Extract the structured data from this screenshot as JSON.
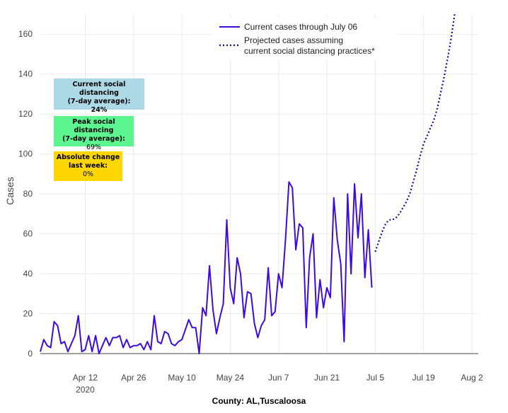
{
  "chart_data": {
    "type": "line",
    "title": "",
    "xlabel": "County: AL,Tuscaloosa",
    "ylabel": "Cases",
    "ylim": [
      0,
      170
    ],
    "yticks": [
      0,
      20,
      40,
      60,
      80,
      100,
      120,
      140,
      160
    ],
    "x_start": "2020-03-30",
    "x_end": "2020-08-03",
    "xticks": [
      {
        "day": 13,
        "label": "Apr 12",
        "sub": "2020"
      },
      {
        "day": 27,
        "label": "Apr 26",
        "sub": ""
      },
      {
        "day": 41,
        "label": "May 10",
        "sub": ""
      },
      {
        "day": 55,
        "label": "May 24",
        "sub": ""
      },
      {
        "day": 69,
        "label": "Jun 7",
        "sub": ""
      },
      {
        "day": 83,
        "label": "Jun 21",
        "sub": ""
      },
      {
        "day": 97,
        "label": "Jul 5",
        "sub": ""
      },
      {
        "day": 111,
        "label": "Jul 19",
        "sub": ""
      },
      {
        "day": 125,
        "label": "Aug 2",
        "sub": ""
      }
    ],
    "series": [
      {
        "name": "Current cases through July 06",
        "style": "solid",
        "color": "#3d0ae0",
        "x_start_day": 0,
        "values": [
          1,
          7,
          4,
          3,
          16,
          14,
          5,
          6,
          1,
          5,
          9,
          19,
          1,
          2,
          9,
          1,
          9,
          0,
          4,
          8,
          4,
          8,
          8,
          9,
          3,
          7,
          3,
          4,
          4,
          5,
          2,
          6,
          2,
          19,
          6,
          5,
          11,
          10,
          5,
          4,
          6,
          7,
          12,
          17,
          13,
          13,
          0,
          23,
          19,
          44,
          22,
          10,
          18,
          25,
          67,
          33,
          25,
          48,
          40,
          18,
          31,
          30,
          15,
          8,
          14,
          17,
          43,
          19,
          21,
          40,
          33,
          57,
          86,
          83,
          52,
          65,
          63,
          13,
          48,
          60,
          18,
          37,
          23,
          33,
          28,
          78,
          57,
          45,
          6,
          80,
          40,
          85,
          58,
          80,
          38,
          62,
          33
        ]
      },
      {
        "name": "Projected cases assuming current social distancing practices*",
        "style": "dotted",
        "color": "#1a0a99",
        "x_start_day": 97,
        "values": [
          51,
          56,
          61,
          65,
          67,
          67,
          68,
          70,
          73,
          76,
          80,
          86,
          92,
          99,
          105,
          109,
          113,
          117,
          123,
          131,
          139,
          148,
          158,
          170
        ]
      }
    ],
    "legend": {
      "placement": "top-center",
      "line1": "Current cases through July 06",
      "line2a": "Projected cases assuming",
      "line2b": "current social distancing practices*"
    }
  },
  "info_boxes": {
    "current": {
      "title1": "Current social distancing",
      "title2": "(7-day average):",
      "value": "24%",
      "color": "#add8e6"
    },
    "peak": {
      "title1": "Peak social distancing",
      "title2": "(7-day average):",
      "value": "69%",
      "color": "#5cf58f"
    },
    "change": {
      "title1": "Absolute change",
      "title2": "last week:",
      "value": "0%",
      "color": "#ffd700"
    }
  }
}
